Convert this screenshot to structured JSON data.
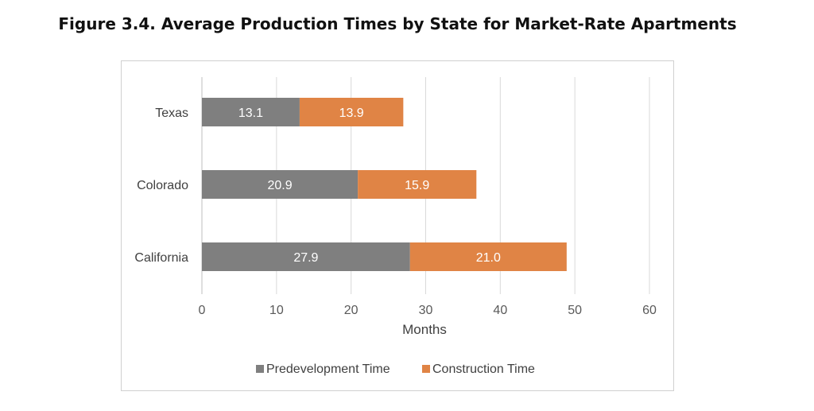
{
  "figure": {
    "title": "Figure 3.4. Average Production Times by State for Market-Rate Apartments"
  },
  "chart_data": {
    "type": "bar",
    "orientation": "horizontal",
    "stacked": true,
    "categories": [
      "Texas",
      "Colorado",
      "California"
    ],
    "series": [
      {
        "name": "Predevelopment Time",
        "values": [
          13.1,
          20.9,
          27.9
        ],
        "color": "#7f7f7f"
      },
      {
        "name": "Construction Time",
        "values": [
          13.9,
          15.9,
          21.0
        ],
        "color": "#e08445"
      }
    ],
    "xlabel": "Months",
    "ylabel": "",
    "xlim": [
      0,
      60
    ],
    "xticks": [
      "0",
      "10",
      "20",
      "30",
      "40",
      "50",
      "60"
    ],
    "grid": true,
    "legend": "bottom",
    "data_labels": {
      "Predevelopment Time": [
        "13.1",
        "20.9",
        "27.9"
      ],
      "Construction Time": [
        "13.9",
        "15.9",
        "21.0"
      ]
    }
  }
}
